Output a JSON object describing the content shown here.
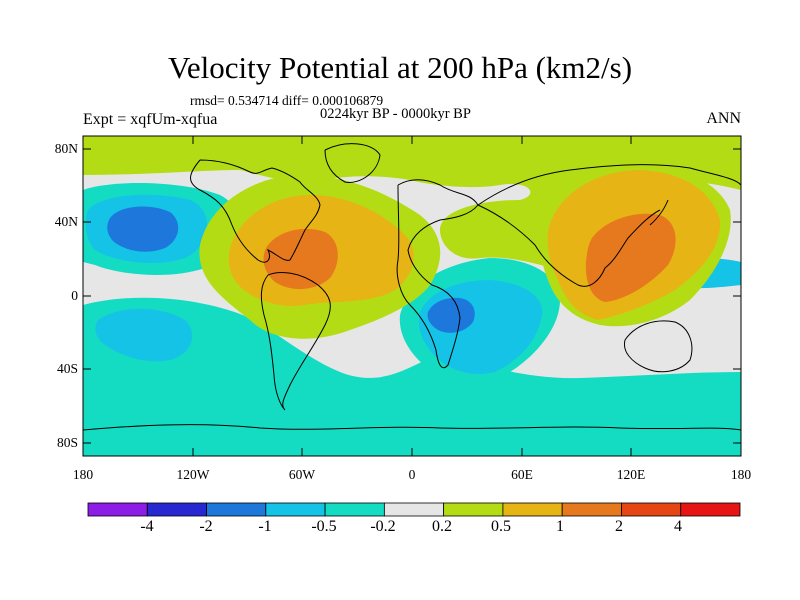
{
  "title": "Velocity Potential at 200 hPa (km2/s)",
  "stats": "rmsd= 0.534714  diff= 0.000106879",
  "period": "0224kyr BP - 0000kyr BP",
  "experiment": "Expt = xqfUm-xqfua",
  "season": "ANN",
  "lat_ticks": [
    "80N",
    "40N",
    "0",
    "40S",
    "80S"
  ],
  "lon_ticks": [
    "180",
    "120W",
    "60W",
    "0",
    "60E",
    "120E",
    "180"
  ],
  "colorbar": {
    "labels": [
      "-4",
      "-2",
      "-1",
      "-0.5",
      "-0.2",
      "0.2",
      "0.5",
      "1",
      "2",
      "4"
    ],
    "colors": [
      "#8c1ee6",
      "#2828d2",
      "#1e78dc",
      "#14c3e6",
      "#14dcc3",
      "#e6e6e6",
      "#b4dc14",
      "#e6b414",
      "#e6781e",
      "#e64614",
      "#e61414"
    ]
  }
}
